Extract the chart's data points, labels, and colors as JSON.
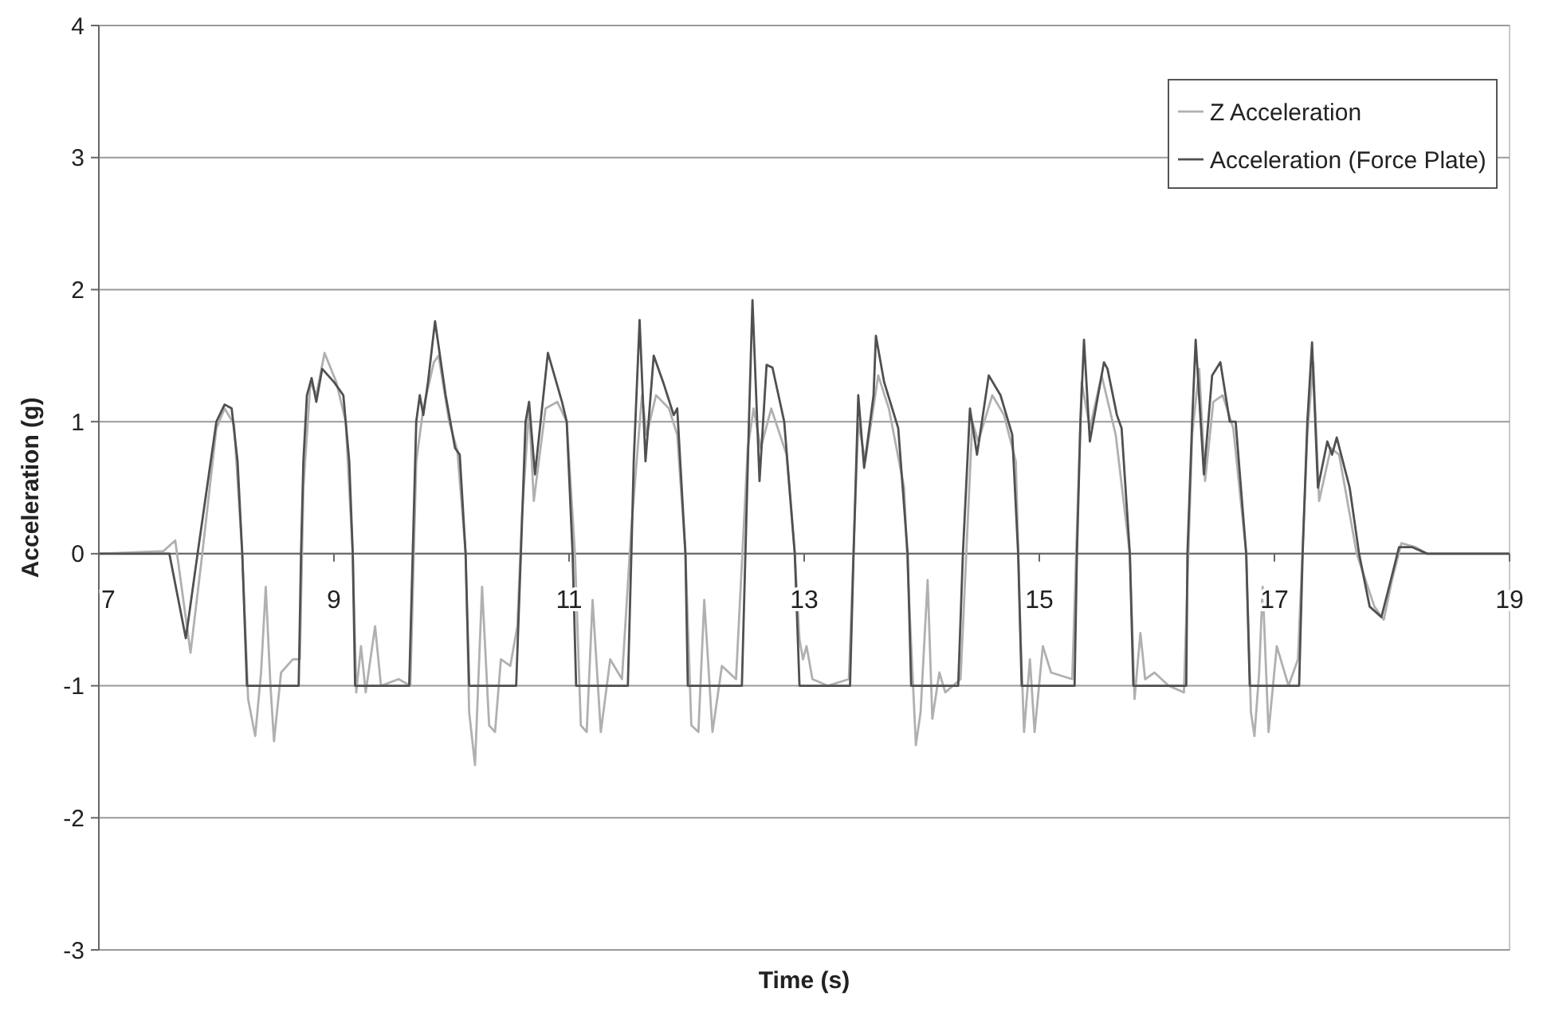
{
  "chart_data": {
    "type": "line",
    "xlabel": "Time (s)",
    "ylabel": "Acceleration (g)",
    "xlim": [
      7,
      19
    ],
    "xticks": [
      7,
      9,
      11,
      13,
      15,
      17,
      19
    ],
    "ylim": [
      -3,
      4
    ],
    "yticks": [
      -3,
      -2,
      -1,
      0,
      1,
      2,
      3,
      4
    ],
    "grid": "y",
    "legend": "top right",
    "marker": "none",
    "line_style": "solid",
    "series": [
      {
        "name": "Z Acceleration",
        "color": "#b0b0b0",
        "x": [
          7,
          7.55,
          7.65,
          7.78,
          7.88,
          8.0,
          8.07,
          8.15,
          8.22,
          8.27,
          8.33,
          8.38,
          8.42,
          8.46,
          8.49,
          8.55,
          8.65,
          8.71,
          8.74,
          8.8,
          8.85,
          8.92,
          9.02,
          9.1,
          9.16,
          9.19,
          9.23,
          9.27,
          9.35,
          9.4,
          9.55,
          9.65,
          9.7,
          9.76,
          9.85,
          9.89,
          9.98,
          10.05,
          10.12,
          10.15,
          10.2,
          10.26,
          10.32,
          10.37,
          10.42,
          10.5,
          10.56,
          10.6,
          10.66,
          10.7,
          10.8,
          10.9,
          10.98,
          11.05,
          11.1,
          11.15,
          11.2,
          11.27,
          11.35,
          11.45,
          11.53,
          11.62,
          11.66,
          11.74,
          11.85,
          11.92,
          11.99,
          12.04,
          12.1,
          12.15,
          12.22,
          12.3,
          12.42,
          12.52,
          12.57,
          12.63,
          12.72,
          12.85,
          12.92,
          12.96,
          12.99,
          13.02,
          13.07,
          13.2,
          13.38,
          13.46,
          13.52,
          13.63,
          13.72,
          13.85,
          13.9,
          13.95,
          13.99,
          14.05,
          14.09,
          14.15,
          14.2,
          14.33,
          14.43,
          14.48,
          14.6,
          14.7,
          14.8,
          14.84,
          14.87,
          14.92,
          14.96,
          15.03,
          15.1,
          15.28,
          15.36,
          15.43,
          15.53,
          15.65,
          15.77,
          15.81,
          15.86,
          15.9,
          15.98,
          16.1,
          16.23,
          16.3,
          16.36,
          16.41,
          16.48,
          16.56,
          16.65,
          16.76,
          16.8,
          16.83,
          16.87,
          16.9,
          16.95,
          17.02,
          17.12,
          17.2,
          17.28,
          17.33,
          17.38,
          17.48,
          17.55,
          17.7,
          17.85,
          17.93,
          18.0,
          18.08,
          18.2,
          18.3,
          19
        ],
        "values": [
          0,
          0.02,
          0.1,
          -0.75,
          0,
          0.95,
          1.1,
          0.98,
          0,
          -1.1,
          -1.38,
          -0.9,
          -0.25,
          -1.0,
          -1.42,
          -0.9,
          -0.8,
          -0.8,
          0.5,
          1.3,
          1.2,
          1.52,
          1.3,
          1.0,
          0,
          -1.05,
          -0.7,
          -1.05,
          -0.55,
          -1.0,
          -0.95,
          -1.0,
          0.7,
          1.1,
          1.45,
          1.5,
          1.0,
          0.78,
          0,
          -1.2,
          -1.6,
          -0.25,
          -1.3,
          -1.35,
          -0.8,
          -0.85,
          -0.55,
          0.3,
          1.1,
          0.4,
          1.1,
          1.15,
          1.0,
          0,
          -1.3,
          -1.35,
          -0.35,
          -1.35,
          -0.8,
          -0.95,
          0.2,
          1.2,
          0.9,
          1.2,
          1.1,
          0.9,
          0,
          -1.3,
          -1.35,
          -0.35,
          -1.35,
          -0.85,
          -0.95,
          0.8,
          1.1,
          0.8,
          1.1,
          0.75,
          0,
          -0.65,
          -0.8,
          -0.7,
          -0.95,
          -1.0,
          -0.95,
          1.0,
          0.7,
          1.35,
          1.1,
          0.5,
          -0.5,
          -1.45,
          -1.2,
          -0.2,
          -1.25,
          -0.9,
          -1.05,
          -0.95,
          1.0,
          0.85,
          1.2,
          1.05,
          0.7,
          -0.6,
          -1.35,
          -0.8,
          -1.35,
          -0.7,
          -0.9,
          -0.95,
          1.3,
          0.95,
          1.35,
          0.9,
          0,
          -1.1,
          -0.6,
          -0.95,
          -0.9,
          -1.0,
          -1.05,
          0.9,
          1.4,
          0.55,
          1.15,
          1.2,
          0.95,
          0,
          -1.2,
          -1.38,
          -0.9,
          -0.25,
          -1.35,
          -0.7,
          -1.0,
          -0.8,
          0.9,
          1.45,
          0.4,
          0.8,
          0.75,
          0,
          -0.4,
          -0.5,
          -0.2,
          0.08,
          0.05,
          0,
          0
        ]
      },
      {
        "name": "Acceleration (Force Plate)",
        "color": "#505050",
        "x": [
          7,
          7.6,
          7.74,
          7.84,
          7.92,
          8.0,
          8.07,
          8.13,
          8.18,
          8.22,
          8.26,
          8.7,
          8.72,
          8.74,
          8.77,
          8.81,
          8.85,
          8.9,
          9.0,
          9.08,
          9.13,
          9.16,
          9.18,
          9.64,
          9.67,
          9.7,
          9.73,
          9.76,
          9.8,
          9.86,
          9.95,
          10.03,
          10.07,
          10.12,
          10.15,
          10.55,
          10.59,
          10.63,
          10.66,
          10.71,
          10.82,
          10.94,
          10.98,
          11.03,
          11.06,
          11.5,
          11.53,
          11.55,
          11.6,
          11.65,
          11.72,
          11.8,
          11.89,
          11.92,
          11.99,
          12.01,
          12.47,
          12.5,
          12.53,
          12.56,
          12.62,
          12.68,
          12.73,
          12.83,
          12.92,
          12.96,
          13.39,
          13.42,
          13.46,
          13.51,
          13.59,
          13.61,
          13.68,
          13.8,
          13.88,
          13.91,
          14.31,
          14.35,
          14.41,
          14.47,
          14.57,
          14.67,
          14.77,
          14.82,
          14.85,
          15.3,
          15.32,
          15.35,
          15.38,
          15.43,
          15.55,
          15.58,
          15.66,
          15.7,
          15.77,
          15.8,
          16.25,
          16.26,
          16.3,
          16.33,
          16.4,
          16.47,
          16.54,
          16.62,
          16.67,
          16.76,
          16.79,
          17.21,
          17.24,
          17.28,
          17.32,
          17.37,
          17.45,
          17.49,
          17.53,
          17.64,
          17.72,
          17.81,
          17.91,
          17.99,
          18.06,
          18.17,
          18.3,
          19
        ],
        "values": [
          0,
          0,
          -0.64,
          0,
          0.5,
          1.0,
          1.13,
          1.1,
          0.7,
          0,
          -1,
          -1,
          0,
          0.7,
          1.2,
          1.33,
          1.15,
          1.4,
          1.3,
          1.2,
          0.7,
          0,
          -1,
          -1,
          0,
          1.0,
          1.2,
          1.05,
          1.3,
          1.76,
          1.2,
          0.8,
          0.75,
          0,
          -1,
          -1,
          0,
          1.0,
          1.15,
          0.6,
          1.52,
          1.15,
          1.0,
          0,
          -1,
          -1,
          0,
          0.7,
          1.77,
          0.7,
          1.5,
          1.3,
          1.05,
          1.1,
          0,
          -1,
          -1,
          0,
          1.0,
          1.92,
          0.55,
          1.43,
          1.41,
          1.0,
          0,
          -1,
          -1,
          0,
          1.2,
          0.65,
          1.2,
          1.65,
          1.3,
          0.95,
          0,
          -1,
          -1,
          0,
          1.1,
          0.75,
          1.35,
          1.2,
          0.9,
          0,
          -1,
          -1,
          0,
          1.0,
          1.62,
          0.85,
          1.45,
          1.4,
          1.05,
          0.95,
          0,
          -1,
          -1,
          0,
          1.0,
          1.62,
          0.6,
          1.35,
          1.45,
          1.0,
          1.0,
          0,
          -1,
          -1,
          0,
          1.0,
          1.6,
          0.5,
          0.85,
          0.75,
          0.88,
          0.5,
          0,
          -0.4,
          -0.48,
          -0.2,
          0.05,
          0.05,
          0,
          0
        ]
      }
    ]
  }
}
